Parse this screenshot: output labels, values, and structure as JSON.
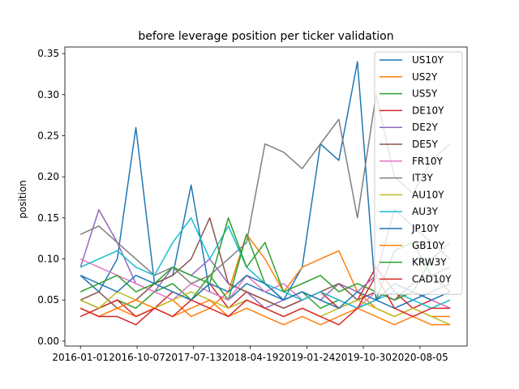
{
  "chart_data": {
    "type": "line",
    "title": "before leverage position per ticker validation",
    "xlabel": "",
    "ylabel": "position",
    "ylim": [
      -0.006,
      0.358
    ],
    "xlim": [
      "2015-10-16",
      "2021-03-26"
    ],
    "x_ticks": [
      "2016-01-01",
      "2016-10-07",
      "2017-07-13",
      "2018-04-19",
      "2019-01-24",
      "2019-10-30",
      "2020-08-05"
    ],
    "y_ticks": [
      "0.00",
      "0.05",
      "0.10",
      "0.15",
      "0.20",
      "0.25",
      "0.30",
      "0.35"
    ],
    "y_tick_values": [
      0.0,
      0.05,
      0.1,
      0.15,
      0.2,
      0.25,
      0.3,
      0.35
    ],
    "legend_position": "upper right",
    "grid": false,
    "x": [
      "2016-01-01",
      "2016-04-01",
      "2016-07-01",
      "2016-10-01",
      "2017-01-01",
      "2017-04-01",
      "2017-07-01",
      "2017-10-01",
      "2018-01-01",
      "2018-04-01",
      "2018-07-01",
      "2018-10-01",
      "2019-01-01",
      "2019-04-01",
      "2019-07-01",
      "2019-10-01",
      "2020-01-01",
      "2020-04-01",
      "2020-07-01",
      "2020-10-01",
      "2021-01-01"
    ],
    "series": [
      {
        "name": "US10Y",
        "color": "#1f77b4",
        "values": [
          0.08,
          0.06,
          0.1,
          0.26,
          0.07,
          0.08,
          0.19,
          0.06,
          0.05,
          0.07,
          0.06,
          0.05,
          0.09,
          0.24,
          0.22,
          0.34,
          0.05,
          0.04,
          0.05,
          0.06,
          0.07
        ]
      },
      {
        "name": "US2Y",
        "color": "#ff7f0e",
        "values": [
          0.04,
          0.03,
          0.04,
          0.03,
          0.04,
          0.05,
          0.03,
          0.04,
          0.06,
          0.13,
          0.1,
          0.06,
          0.09,
          0.1,
          0.11,
          0.06,
          0.04,
          0.03,
          0.04,
          0.03,
          0.03
        ]
      },
      {
        "name": "US5Y",
        "color": "#2ca02c",
        "values": [
          0.05,
          0.04,
          0.05,
          0.04,
          0.06,
          0.07,
          0.05,
          0.08,
          0.05,
          0.13,
          0.07,
          0.05,
          0.06,
          0.04,
          0.05,
          0.04,
          0.05,
          0.11,
          0.12,
          0.08,
          0.09
        ]
      },
      {
        "name": "DE10Y",
        "color": "#d62728",
        "values": [
          0.03,
          0.04,
          0.05,
          0.03,
          0.04,
          0.06,
          0.05,
          0.07,
          0.04,
          0.06,
          0.05,
          0.04,
          0.05,
          0.06,
          0.04,
          0.05,
          0.09,
          0.06,
          0.04,
          0.05,
          0.04
        ]
      },
      {
        "name": "DE2Y",
        "color": "#9467bd",
        "values": [
          0.09,
          0.16,
          0.12,
          0.07,
          0.06,
          0.09,
          0.08,
          0.1,
          0.07,
          0.06,
          0.04,
          0.05,
          0.06,
          0.05,
          0.07,
          0.06,
          0.08,
          0.16,
          0.14,
          0.12,
          0.1
        ]
      },
      {
        "name": "DE5Y",
        "color": "#8c564b",
        "values": [
          0.05,
          0.06,
          0.04,
          0.05,
          0.07,
          0.08,
          0.1,
          0.15,
          0.07,
          0.06,
          0.05,
          0.04,
          0.05,
          0.06,
          0.07,
          0.05,
          0.06,
          0.05,
          0.07,
          0.08,
          0.06
        ]
      },
      {
        "name": "FR10Y",
        "color": "#e377c2",
        "values": [
          0.1,
          0.09,
          0.08,
          0.07,
          0.06,
          0.05,
          0.07,
          0.06,
          0.05,
          0.08,
          0.06,
          0.07,
          0.05,
          0.06,
          0.05,
          0.04,
          0.06,
          0.05,
          0.06,
          0.05,
          0.04
        ]
      },
      {
        "name": "IT3Y",
        "color": "#7f7f7f",
        "values": [
          0.13,
          0.14,
          0.12,
          0.1,
          0.08,
          0.09,
          0.07,
          0.08,
          0.1,
          0.12,
          0.24,
          0.23,
          0.21,
          0.24,
          0.27,
          0.15,
          0.3,
          0.2,
          0.18,
          0.22,
          0.24
        ]
      },
      {
        "name": "AU10Y",
        "color": "#bcbd22",
        "values": [
          0.05,
          0.04,
          0.06,
          0.05,
          0.04,
          0.05,
          0.06,
          0.05,
          0.04,
          0.05,
          0.04,
          0.03,
          0.04,
          0.03,
          0.04,
          0.05,
          0.04,
          0.03,
          0.04,
          0.03,
          0.02
        ]
      },
      {
        "name": "AU3Y",
        "color": "#17becf",
        "values": [
          0.09,
          0.1,
          0.11,
          0.09,
          0.08,
          0.12,
          0.15,
          0.1,
          0.14,
          0.09,
          0.07,
          0.06,
          0.05,
          0.06,
          0.05,
          0.04,
          0.05,
          0.06,
          0.05,
          0.04,
          0.05
        ]
      },
      {
        "name": "JP10Y",
        "color": "#1f77b4",
        "values": [
          0.08,
          0.07,
          0.06,
          0.08,
          0.07,
          0.06,
          0.05,
          0.07,
          0.06,
          0.08,
          0.07,
          0.05,
          0.06,
          0.05,
          0.04,
          0.06,
          0.05,
          0.07,
          0.06,
          0.05,
          0.06
        ]
      },
      {
        "name": "GB10Y",
        "color": "#ff7f0e",
        "values": [
          0.04,
          0.03,
          0.04,
          0.05,
          0.04,
          0.03,
          0.04,
          0.05,
          0.03,
          0.04,
          0.03,
          0.02,
          0.03,
          0.02,
          0.03,
          0.04,
          0.03,
          0.02,
          0.03,
          0.02,
          0.02
        ]
      },
      {
        "name": "KRW3Y",
        "color": "#2ca02c",
        "values": [
          0.06,
          0.07,
          0.08,
          0.06,
          0.07,
          0.09,
          0.08,
          0.07,
          0.15,
          0.09,
          0.12,
          0.06,
          0.07,
          0.08,
          0.06,
          0.07,
          0.06,
          0.05,
          0.06,
          0.1,
          0.12
        ]
      },
      {
        "name": "CAD10Y",
        "color": "#d62728",
        "values": [
          0.04,
          0.03,
          0.03,
          0.02,
          0.04,
          0.03,
          0.05,
          0.04,
          0.03,
          0.05,
          0.04,
          0.03,
          0.04,
          0.03,
          0.02,
          0.04,
          0.08,
          0.04,
          0.03,
          0.04,
          0.04
        ]
      }
    ]
  }
}
